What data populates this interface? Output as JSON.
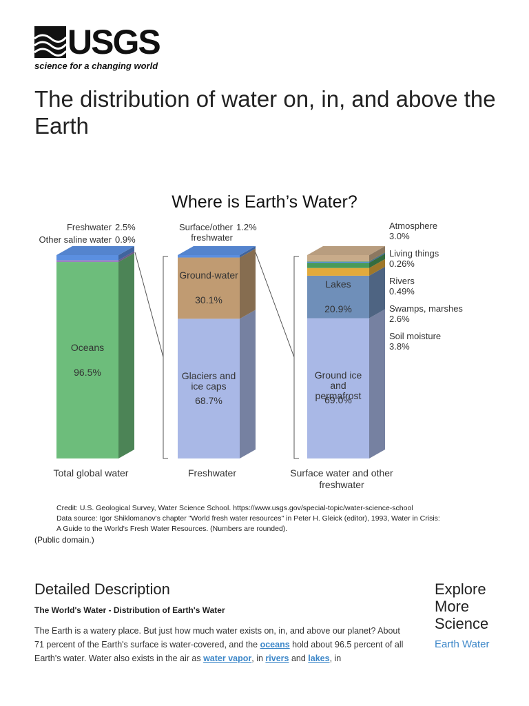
{
  "header": {
    "logo_text": "USGS",
    "tagline": "science for a changing world"
  },
  "title": "The distribution of water on, in, and above the Earth",
  "figure": {
    "chart": {
      "type": "stacked-column",
      "title": "Where is Earth’s Water?",
      "columns": [
        {
          "label": "Total global water",
          "segments": [
            {
              "name": "Oceans",
              "value": 96.5,
              "value_label": "96.5%",
              "color": "#6dbd7b"
            },
            {
              "name": "Other saline water",
              "value": 0.9,
              "value_label": "0.9%",
              "color": "#9a80c2"
            },
            {
              "name": "Freshwater",
              "value": 2.5,
              "value_label": "2.5%",
              "color": "#5b8fe0"
            }
          ]
        },
        {
          "label": "Freshwater",
          "segments": [
            {
              "name": "Glaciers and ice caps",
              "value": 68.7,
              "value_label": "68.7%",
              "color": "#a9b8e6"
            },
            {
              "name": "Ground-water",
              "value": 30.1,
              "value_label": "30.1%",
              "color": "#c09b72"
            },
            {
              "name": "Surface/other freshwater",
              "value": 1.2,
              "value_label": "1.2%",
              "color": "#5b8fe0"
            }
          ]
        },
        {
          "label": "Surface water and other freshwater",
          "segments": [
            {
              "name": "Ground ice and permafrost",
              "value": 69.0,
              "value_label": "69.0%",
              "color": "#a9b8e6"
            },
            {
              "name": "Lakes",
              "value": 20.9,
              "value_label": "20.9%",
              "color": "#6f8fb9"
            },
            {
              "name": "Soil moisture",
              "value": 3.8,
              "value_label": "3.8%",
              "color": "#e2aa3c"
            },
            {
              "name": "Swamps, marshes",
              "value": 2.6,
              "value_label": "2.6%",
              "color": "#4a9a5a"
            },
            {
              "name": "Rivers",
              "value": 0.49,
              "value_label": "0.49%",
              "color": "#5b8fe0"
            },
            {
              "name": "Living things",
              "value": 0.26,
              "value_label": "0.26%",
              "color": "#7ea552"
            },
            {
              "name": "Atmosphere",
              "value": 3.0,
              "value_label": "3.0%",
              "color": "#c8ab8a"
            }
          ]
        }
      ]
    },
    "credits": [
      "Credit: U.S. Geological Survey, Water Science School. https://www.usgs.gov/special-topic/water-science-school",
      "Data source: Igor Shiklomanov's chapter \"World fresh water resources\" in Peter H. Gleick (editor), 1993, Water in Crisis:",
      "A Guide to the World's Fresh Water Resources. (Numbers are rounded)."
    ],
    "license": "(Public domain.)"
  },
  "description": {
    "heading": "Detailed Description",
    "subheading": "The World's Water - Distribution of Earth's Water",
    "paragraph": [
      "The Earth is a watery place. But just how much water exists on, in, and above our planet? About 71 percent of the Earth's surface is water-covered, and the ",
      "oceans",
      " hold about 96.5 percent of all Earth's water. Water also exists in the air as ",
      "water vapor",
      ", in ",
      "rivers",
      " and ",
      "lakes",
      ", in"
    ]
  },
  "sidebar": {
    "heading": "Explore More Science",
    "link": "Earth Water"
  }
}
